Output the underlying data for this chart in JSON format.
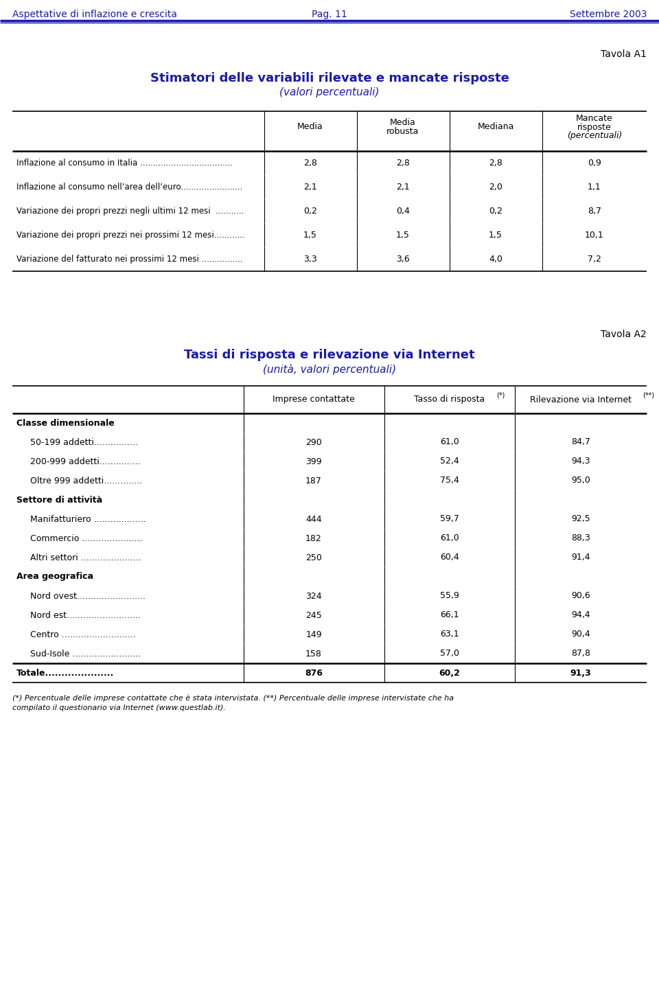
{
  "header_left": "Aspettative di inflazione e crescita",
  "header_center": "Pag. 11",
  "header_right": "Settembre 2003",
  "header_color": "#1a1aaa",
  "tavola_a1_label": "Tavola A1",
  "table1_title": "Stimatori delle variabili rilevate e mancate risposte",
  "table1_subtitle": "(valori percentuali)",
  "table1_title_color": "#1a1aaa",
  "table1_col_headers": [
    [
      "Media"
    ],
    [
      "Media",
      "robusta"
    ],
    [
      "Mediana"
    ],
    [
      "Mancate",
      "risposte",
      "(percentuali)"
    ]
  ],
  "table1_rows": [
    [
      "Inflazione al consumo in Italia ....................................",
      "2,8",
      "2,8",
      "2,8",
      "0,9"
    ],
    [
      "Inflazione al consumo nell’area dell’euro........................",
      "2,1",
      "2,1",
      "2,0",
      "1,1"
    ],
    [
      "Variazione dei propri prezzi negli ultimi 12 mesi  ...........",
      "0,2",
      "0,4",
      "0,2",
      "8,7"
    ],
    [
      "Variazione dei propri prezzi nei prossimi 12 mesi............",
      "1,5",
      "1,5",
      "1,5",
      "10,1"
    ],
    [
      "Variazione del fatturato nei prossimi 12 mesi ................",
      "3,3",
      "3,6",
      "4,0",
      "7,2"
    ]
  ],
  "tavola_a2_label": "Tavola A2",
  "table2_title": "Tassi di risposta e rilevazione via Internet",
  "table2_subtitle": "(unità, valori percentuali)",
  "table2_title_color": "#1a1aaa",
  "table2_col_headers": [
    "Imprese contattate",
    "Tasso di risposta(*)",
    "Rilevazione via Internet(**)"
  ],
  "table2_rows": [
    {
      "label": "Classe dimensionale",
      "bold": true,
      "indent": 0,
      "values": [
        "",
        "",
        ""
      ]
    },
    {
      "label": "50-199 addetti................",
      "bold": false,
      "indent": 1,
      "values": [
        "290",
        "61,0",
        "84,7"
      ]
    },
    {
      "label": "200-999 addetti...............",
      "bold": false,
      "indent": 1,
      "values": [
        "399",
        "52,4",
        "94,3"
      ]
    },
    {
      "label": "Oltre 999 addetti..............",
      "bold": false,
      "indent": 1,
      "values": [
        "187",
        "75,4",
        "95,0"
      ]
    },
    {
      "label": "Settore di attività",
      "bold": true,
      "indent": 0,
      "values": [
        "",
        "",
        ""
      ]
    },
    {
      "label": "Manifatturiero ...................",
      "bold": false,
      "indent": 1,
      "values": [
        "444",
        "59,7",
        "92,5"
      ]
    },
    {
      "label": "Commercio ......................",
      "bold": false,
      "indent": 1,
      "values": [
        "182",
        "61,0",
        "88,3"
      ]
    },
    {
      "label": "Altri settori ......................",
      "bold": false,
      "indent": 1,
      "values": [
        "250",
        "60,4",
        "91,4"
      ]
    },
    {
      "label": "Area geografica",
      "bold": true,
      "indent": 0,
      "values": [
        "",
        "",
        ""
      ]
    },
    {
      "label": "Nord ovest.........................",
      "bold": false,
      "indent": 1,
      "values": [
        "324",
        "55,9",
        "90,6"
      ]
    },
    {
      "label": "Nord est...........................",
      "bold": false,
      "indent": 1,
      "values": [
        "245",
        "66,1",
        "94,4"
      ]
    },
    {
      "label": "Centro ...........................",
      "bold": false,
      "indent": 1,
      "values": [
        "149",
        "63,1",
        "90,4"
      ]
    },
    {
      "label": "Sud-Isole .........................",
      "bold": false,
      "indent": 1,
      "values": [
        "158",
        "57,0",
        "87,8"
      ]
    },
    {
      "label": "Totale.....................",
      "bold": true,
      "indent": 0,
      "values": [
        "876",
        "60,2",
        "91,3"
      ]
    }
  ],
  "footnote_line1": "(*) Percentuale delle imprese contattate che è stata intervistata. (**) Percentuale delle imprese intervistate che ha",
  "footnote_line2": "compilato il questionario via Internet (www.questlab.it).",
  "bg_color": "#ffffff",
  "text_color": "#000000",
  "header_line_color": "#1a1aaa"
}
